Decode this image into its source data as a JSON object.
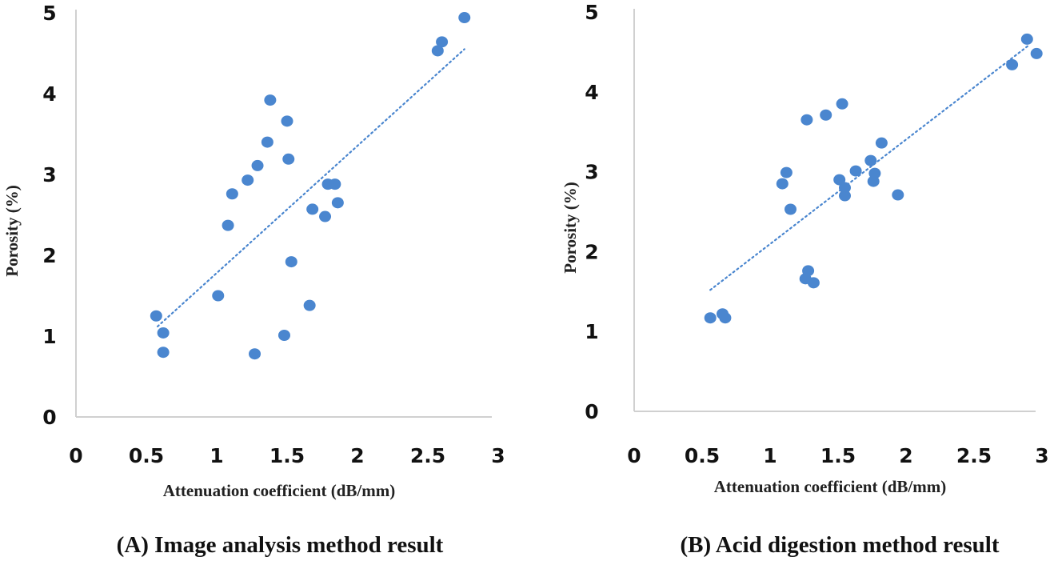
{
  "chart_data": [
    {
      "type": "scatter",
      "id": "A",
      "title": "",
      "caption": "(A) Image analysis method result",
      "xlabel": "Attenuation coefficient (dB/mm)",
      "ylabel": "Porosity (%)",
      "xlim": [
        0,
        3
      ],
      "ylim": [
        0,
        5
      ],
      "xticks": [
        "0",
        "0.5",
        "1",
        "1.5",
        "2",
        "2.5",
        "3"
      ],
      "yticks": [
        "0",
        "1",
        "2",
        "3",
        "4",
        "5"
      ],
      "grid": false,
      "marker_color": "#4a86cf",
      "trendline": {
        "style": "dotted",
        "x": [
          0.58,
          2.76
        ],
        "y": [
          1.12,
          4.55
        ]
      },
      "points": [
        [
          2.76,
          4.94
        ],
        [
          2.6,
          4.64
        ],
        [
          2.57,
          4.53
        ],
        [
          1.38,
          3.92
        ],
        [
          1.5,
          3.66
        ],
        [
          1.36,
          3.4
        ],
        [
          1.29,
          3.11
        ],
        [
          1.51,
          3.19
        ],
        [
          1.22,
          2.93
        ],
        [
          1.11,
          2.76
        ],
        [
          1.84,
          2.88
        ],
        [
          1.79,
          2.88
        ],
        [
          1.86,
          2.65
        ],
        [
          1.68,
          2.57
        ],
        [
          1.77,
          2.48
        ],
        [
          1.08,
          2.37
        ],
        [
          1.53,
          1.92
        ],
        [
          1.01,
          1.5
        ],
        [
          1.66,
          1.38
        ],
        [
          0.57,
          1.25
        ],
        [
          0.62,
          1.04
        ],
        [
          0.62,
          0.8
        ],
        [
          1.48,
          1.01
        ],
        [
          1.27,
          0.78
        ]
      ]
    },
    {
      "type": "scatter",
      "id": "B",
      "title": "",
      "caption": "(B) Acid digestion method result",
      "xlabel": "Attenuation coefficient (dB/mm)",
      "ylabel": "Porosity (%)",
      "xlim": [
        0,
        3
      ],
      "ylim": [
        0,
        5
      ],
      "xticks": [
        "0",
        "0.5",
        "1",
        "1.5",
        "2",
        "2.5",
        "3"
      ],
      "yticks": [
        "0",
        "1",
        "2",
        "3",
        "4",
        "5"
      ],
      "grid": false,
      "marker_color": "#4a86cf",
      "trendline": {
        "style": "dotted",
        "x": [
          0.56,
          2.9
        ],
        "y": [
          1.52,
          4.58
        ]
      },
      "points": [
        [
          2.89,
          4.66
        ],
        [
          2.96,
          4.48
        ],
        [
          2.78,
          4.34
        ],
        [
          1.53,
          3.85
        ],
        [
          1.41,
          3.71
        ],
        [
          1.27,
          3.65
        ],
        [
          1.82,
          3.36
        ],
        [
          1.74,
          3.14
        ],
        [
          1.63,
          3.01
        ],
        [
          1.77,
          2.98
        ],
        [
          1.76,
          2.88
        ],
        [
          1.51,
          2.9
        ],
        [
          1.55,
          2.8
        ],
        [
          1.55,
          2.7
        ],
        [
          1.94,
          2.71
        ],
        [
          1.12,
          2.99
        ],
        [
          1.09,
          2.85
        ],
        [
          1.15,
          2.53
        ],
        [
          1.28,
          1.76
        ],
        [
          1.26,
          1.66
        ],
        [
          1.32,
          1.61
        ],
        [
          0.56,
          1.17
        ],
        [
          0.65,
          1.22
        ],
        [
          0.67,
          1.17
        ]
      ]
    }
  ]
}
